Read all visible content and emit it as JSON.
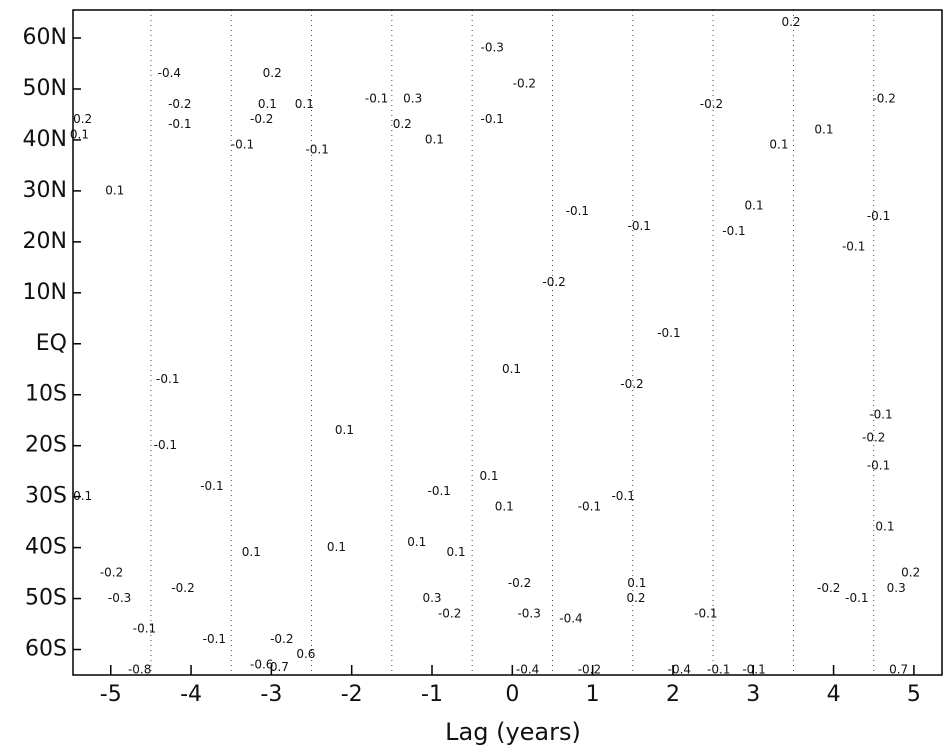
{
  "chart_data": {
    "type": "contour",
    "xlabel": "Lag (years)",
    "xlim": [
      -5.47,
      5.35
    ],
    "xticks": [
      -5,
      -4,
      -3,
      -2,
      -1,
      0,
      1,
      2,
      3,
      4,
      5
    ],
    "ylim": [
      -65,
      65.5
    ],
    "yticks": [
      {
        "value": 60,
        "label": "60N"
      },
      {
        "value": 50,
        "label": "50N"
      },
      {
        "value": 40,
        "label": "40N"
      },
      {
        "value": 30,
        "label": "30N"
      },
      {
        "value": 20,
        "label": "20N"
      },
      {
        "value": 10,
        "label": "10N"
      },
      {
        "value": 0,
        "label": "EQ"
      },
      {
        "value": -10,
        "label": "10S"
      },
      {
        "value": -20,
        "label": "20S"
      },
      {
        "value": -30,
        "label": "30S"
      },
      {
        "value": -40,
        "label": "40S"
      },
      {
        "value": -50,
        "label": "50S"
      },
      {
        "value": -60,
        "label": "60S"
      }
    ],
    "vlines": [
      -4.5,
      -3.5,
      -2.5,
      -1.5,
      -0.5,
      0.5,
      1.5,
      2.5,
      3.5,
      4.5
    ],
    "contour_labels": [
      {
        "x": -5.35,
        "y": 44,
        "value": 0.2
      },
      {
        "x": -5.39,
        "y": 41,
        "value": 0.1
      },
      {
        "x": -4.95,
        "y": 30,
        "value": 0.1
      },
      {
        "x": -4.27,
        "y": 53,
        "value": -0.4
      },
      {
        "x": -4.14,
        "y": 47,
        "value": -0.2
      },
      {
        "x": -4.14,
        "y": 43,
        "value": -0.1
      },
      {
        "x": -3.12,
        "y": 44,
        "value": -0.2
      },
      {
        "x": -3.36,
        "y": 39,
        "value": -0.1
      },
      {
        "x": -2.99,
        "y": 53,
        "value": 0.2
      },
      {
        "x": -3.05,
        "y": 47,
        "value": 0.1
      },
      {
        "x": -2.59,
        "y": 47,
        "value": 0.1
      },
      {
        "x": -2.43,
        "y": 38,
        "value": -0.1
      },
      {
        "x": -1.69,
        "y": 48,
        "value": -0.1
      },
      {
        "x": -1.24,
        "y": 48,
        "value": 0.3
      },
      {
        "x": -1.37,
        "y": 43,
        "value": 0.2
      },
      {
        "x": -0.97,
        "y": 40,
        "value": 0.1
      },
      {
        "x": -0.25,
        "y": 58,
        "value": -0.3
      },
      {
        "x": -0.25,
        "y": 44,
        "value": -0.1
      },
      {
        "x": 0.15,
        "y": 51,
        "value": -0.2
      },
      {
        "x": 0.52,
        "y": 12,
        "value": -0.2
      },
      {
        "x": -0.01,
        "y": -5,
        "value": 0.1
      },
      {
        "x": 0.81,
        "y": 26,
        "value": -0.1
      },
      {
        "x": 1.58,
        "y": 23,
        "value": -0.1
      },
      {
        "x": 1.95,
        "y": 2,
        "value": -0.1
      },
      {
        "x": 1.49,
        "y": -8,
        "value": -0.2
      },
      {
        "x": 2.76,
        "y": 22,
        "value": -0.1
      },
      {
        "x": 3.01,
        "y": 27,
        "value": 0.1
      },
      {
        "x": 3.47,
        "y": 63,
        "value": 0.2
      },
      {
        "x": 2.48,
        "y": 47,
        "value": -0.2
      },
      {
        "x": 3.32,
        "y": 39,
        "value": 0.1
      },
      {
        "x": 3.88,
        "y": 42,
        "value": 0.1
      },
      {
        "x": 4.63,
        "y": 48,
        "value": -0.2
      },
      {
        "x": 4.25,
        "y": 19,
        "value": -0.1
      },
      {
        "x": 4.56,
        "y": 25,
        "value": -0.1
      },
      {
        "x": 4.59,
        "y": -14,
        "value": -0.1
      },
      {
        "x": 4.5,
        "y": -18.5,
        "value": -0.2
      },
      {
        "x": 4.56,
        "y": -24,
        "value": -0.1
      },
      {
        "x": 4.64,
        "y": -36,
        "value": 0.1
      },
      {
        "x": -2.09,
        "y": -17,
        "value": 0.1
      },
      {
        "x": -4.29,
        "y": -7,
        "value": -0.1
      },
      {
        "x": -4.32,
        "y": -20,
        "value": -0.1
      },
      {
        "x": -3.74,
        "y": -28,
        "value": -0.1
      },
      {
        "x": -0.91,
        "y": -29,
        "value": -0.1
      },
      {
        "x": -0.29,
        "y": -26,
        "value": 0.1
      },
      {
        "x": -0.1,
        "y": -32,
        "value": 0.1
      },
      {
        "x": 0.96,
        "y": -32,
        "value": -0.1
      },
      {
        "x": 1.38,
        "y": -30,
        "value": -0.1
      },
      {
        "x": -5.35,
        "y": -30,
        "value": 0.1
      },
      {
        "x": -3.25,
        "y": -41,
        "value": 0.1
      },
      {
        "x": -2.19,
        "y": -40,
        "value": 0.1
      },
      {
        "x": -1.19,
        "y": -39,
        "value": 0.1
      },
      {
        "x": -0.7,
        "y": -41,
        "value": 0.1
      },
      {
        "x": -4.99,
        "y": -45,
        "value": -0.2
      },
      {
        "x": -4.89,
        "y": -50,
        "value": -0.3
      },
      {
        "x": -4.1,
        "y": -48,
        "value": -0.2
      },
      {
        "x": -4.58,
        "y": -56,
        "value": -0.1
      },
      {
        "x": -4.64,
        "y": -64,
        "value": -0.8
      },
      {
        "x": -3.12,
        "y": -63,
        "value": -0.6
      },
      {
        "x": -2.9,
        "y": -63.5,
        "value": 0.7
      },
      {
        "x": -2.57,
        "y": -61,
        "value": 0.6
      },
      {
        "x": -2.87,
        "y": -58,
        "value": -0.2
      },
      {
        "x": -1.0,
        "y": -50,
        "value": 0.3
      },
      {
        "x": -0.78,
        "y": -53,
        "value": -0.2
      },
      {
        "x": 0.09,
        "y": -47,
        "value": -0.2
      },
      {
        "x": 0.21,
        "y": -53,
        "value": -0.3
      },
      {
        "x": 0.73,
        "y": -54,
        "value": -0.4
      },
      {
        "x": 0.19,
        "y": -64,
        "value": -0.4
      },
      {
        "x": 0.96,
        "y": -64,
        "value": -0.2
      },
      {
        "x": 2.08,
        "y": -64,
        "value": -0.4
      },
      {
        "x": 1.55,
        "y": -47,
        "value": 0.1
      },
      {
        "x": 1.54,
        "y": -50,
        "value": 0.2
      },
      {
        "x": 2.41,
        "y": -53,
        "value": -0.1
      },
      {
        "x": 4.81,
        "y": -64,
        "value": 0.7
      },
      {
        "x": 4.78,
        "y": -48,
        "value": 0.3
      },
      {
        "x": 4.96,
        "y": -45,
        "value": 0.2
      },
      {
        "x": 3.94,
        "y": -48,
        "value": -0.2
      },
      {
        "x": 4.29,
        "y": -50,
        "value": -0.1
      },
      {
        "x": 2.57,
        "y": -64,
        "value": -0.1
      },
      {
        "x": 3.01,
        "y": -64,
        "value": -0.1
      },
      {
        "x": -3.71,
        "y": -58,
        "value": -0.1
      }
    ]
  }
}
